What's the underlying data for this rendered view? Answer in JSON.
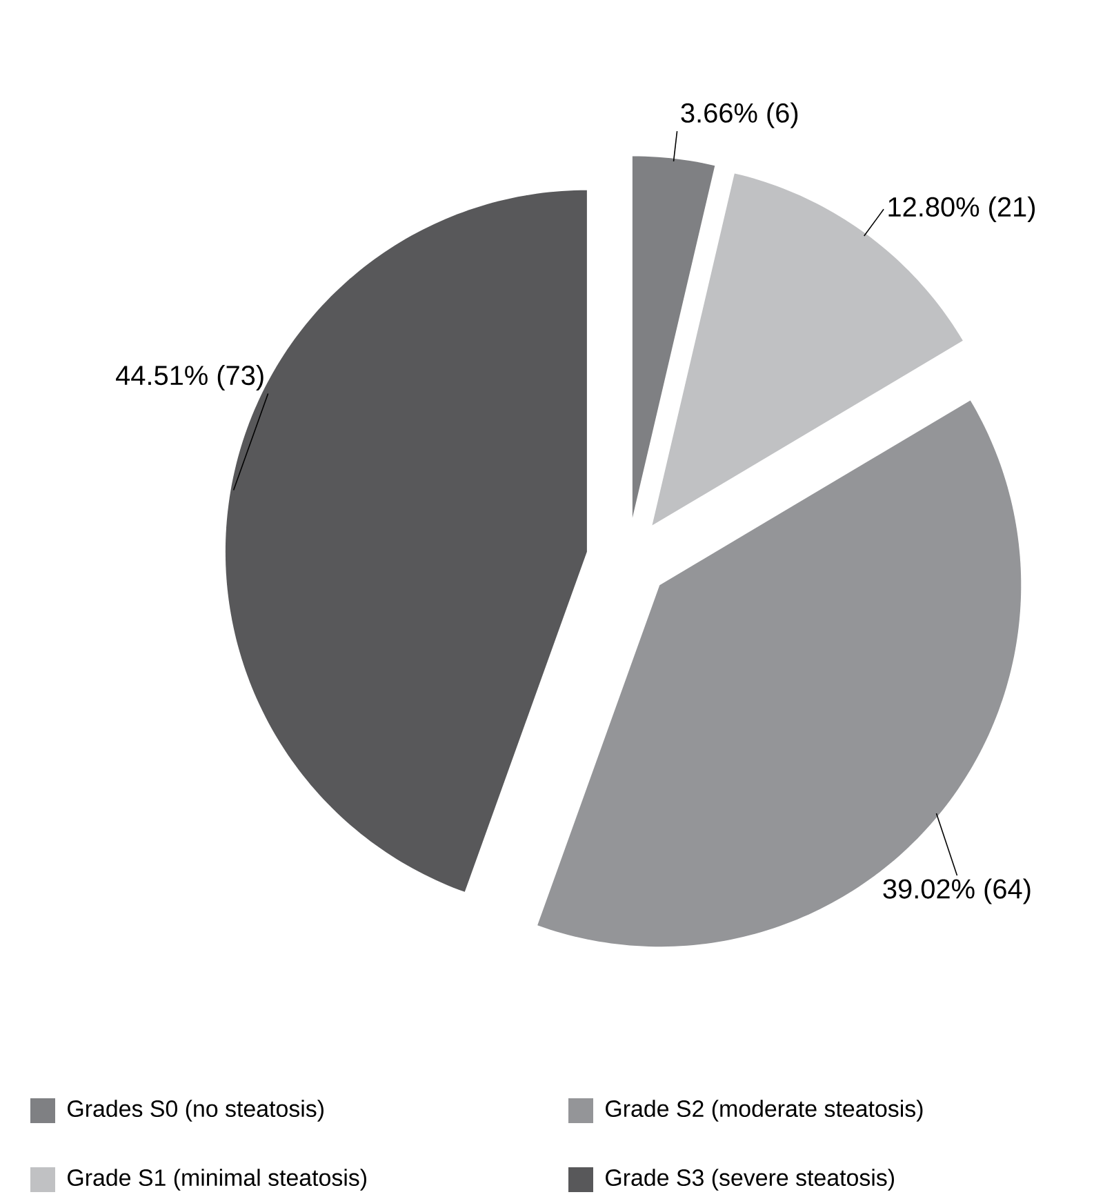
{
  "chart_data": {
    "type": "pie",
    "categories": [
      "Grades S0 (no steatosis)",
      "Grade S1 (minimal steatosis)",
      "Grade S2 (moderate steatosis)",
      "Grade S3 (severe steatosis)"
    ],
    "values": [
      6,
      21,
      64,
      73
    ],
    "value_labels": [
      "3.66% (6)",
      "12.80% (21)",
      "39.02% (64)",
      "44.51% (73)"
    ],
    "colors": [
      "#7f8083",
      "#c0c1c3",
      "#949598",
      "#58585a"
    ],
    "legend": "bottom"
  }
}
